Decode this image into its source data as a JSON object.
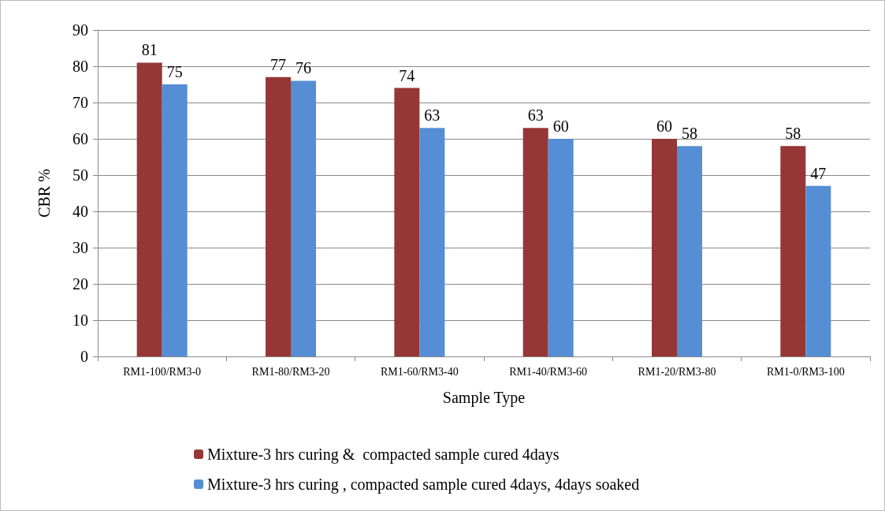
{
  "chart_data": {
    "type": "bar",
    "xlabel": "Sample Type",
    "ylabel": "CBR %",
    "categories": [
      "RM1-100/RM3-0",
      "RM1-80/RM3-20",
      "RM1-60/RM3-40",
      "RM1-40/RM3-60",
      "RM1-20/RM3-80",
      "RM1-0/RM3-100"
    ],
    "series": [
      {
        "name": "Mixture-3 hrs curing &  compacted sample cured 4days",
        "color": "#953735",
        "values": [
          81,
          77,
          74,
          63,
          60,
          58
        ]
      },
      {
        "name": "Mixture-3 hrs curing , compacted sample cured 4days, 4days soaked",
        "color": "#558ed5",
        "values": [
          75,
          76,
          63,
          60,
          58,
          47
        ]
      }
    ],
    "ylim": [
      0,
      90
    ],
    "yticks": [
      0,
      10,
      20,
      30,
      40,
      50,
      60,
      70,
      80,
      90
    ],
    "grid": "y",
    "legend": "bottom",
    "data_labels": true
  }
}
